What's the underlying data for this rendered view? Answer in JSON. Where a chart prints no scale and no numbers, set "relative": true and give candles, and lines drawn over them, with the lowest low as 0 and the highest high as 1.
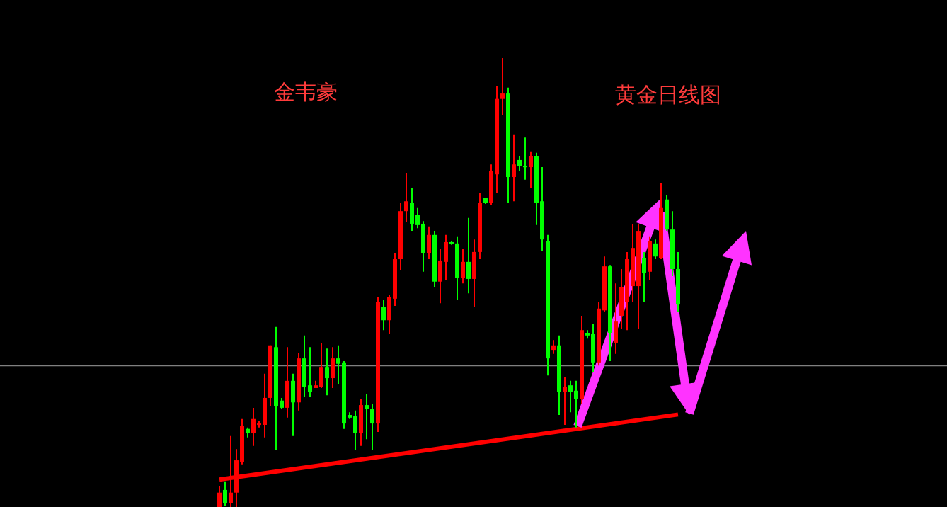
{
  "chart_data": {
    "type": "candlestick",
    "title": "黄金日线图",
    "annotations": [
      "金韦豪"
    ],
    "relative": true,
    "categories": [
      null,
      null,
      null,
      null,
      null,
      null,
      null,
      null,
      null,
      null,
      null,
      null,
      null,
      null,
      null,
      null,
      null,
      null,
      null,
      null,
      null,
      null,
      null,
      null,
      null,
      null,
      null,
      null,
      null,
      null,
      null,
      null,
      null,
      null,
      null,
      null,
      null,
      null,
      null,
      null,
      null,
      null,
      null,
      null,
      null,
      null,
      null,
      null,
      null,
      null,
      null,
      null,
      null,
      null,
      null,
      null,
      null,
      null,
      null,
      null,
      null,
      null,
      null,
      null,
      null,
      null,
      null,
      null,
      null,
      null,
      null,
      null,
      null,
      null,
      null,
      null,
      null,
      null,
      null,
      null,
      null,
      null
    ],
    "ohlc": [
      [
        0,
        0.047,
        0,
        0.032
      ],
      [
        0.038,
        0.057,
        0.003,
        0.009
      ],
      [
        0.009,
        0.158,
        0,
        0.032
      ],
      [
        0.032,
        0.129,
        0,
        0.104
      ],
      [
        0.101,
        0.196,
        0.095,
        0.18
      ],
      [
        0.174,
        0.177,
        0.155,
        0.164
      ],
      [
        0.164,
        0.221,
        0.136,
        0.196
      ],
      [
        0.183,
        0.192,
        0.177,
        0.186
      ],
      [
        0.183,
        0.297,
        0.155,
        0.243
      ],
      [
        0.243,
        0.36,
        0.224,
        0.36
      ],
      [
        0.356,
        0.401,
        0.126,
        0.224
      ],
      [
        0.237,
        0.243,
        0.218,
        0.221
      ],
      [
        0.221,
        0.356,
        0.199,
        0.281
      ],
      [
        0.281,
        0.297,
        0.158,
        0.233
      ],
      [
        0.233,
        0.344,
        0.215,
        0.331
      ],
      [
        0.331,
        0.382,
        0.246,
        0.268
      ],
      [
        0.271,
        0.356,
        0.246,
        0.256
      ],
      [
        0.265,
        0.281,
        0.265,
        0.271
      ],
      [
        0.268,
        0.366,
        0.265,
        0.312
      ],
      [
        0.312,
        0.353,
        0.249,
        0.287
      ],
      [
        0.287,
        0.356,
        0.265,
        0.331
      ],
      [
        0.331,
        0.36,
        0.274,
        0.319
      ],
      [
        0.322,
        0.325,
        0.174,
        0.186
      ],
      [
        0.205,
        0.211,
        0.196,
        0.199
      ],
      [
        0.202,
        0.215,
        0.126,
        0.164
      ],
      [
        0.164,
        0.24,
        0.136,
        0.227
      ],
      [
        0.227,
        0.252,
        0.151,
        0.218
      ],
      [
        0.218,
        0.23,
        0.126,
        0.186
      ],
      [
        0.186,
        0.467,
        0.167,
        0.457
      ],
      [
        0.445,
        0.461,
        0.394,
        0.416
      ],
      [
        0.416,
        0.473,
        0.385,
        0.467
      ],
      [
        0.464,
        0.565,
        0.448,
        0.552
      ],
      [
        0.552,
        0.678,
        0.527,
        0.659
      ],
      [
        0.659,
        0.744,
        0.634,
        0.681
      ],
      [
        0.678,
        0.71,
        0.615,
        0.631
      ],
      [
        0.65,
        0.666,
        0.621,
        0.628
      ],
      [
        0.631,
        0.637,
        0.524,
        0.565
      ],
      [
        0.565,
        0.625,
        0.552,
        0.606
      ],
      [
        0.606,
        0.615,
        0.489,
        0.502
      ],
      [
        0.502,
        0.574,
        0.454,
        0.549
      ],
      [
        0.546,
        0.606,
        0.505,
        0.59
      ],
      [
        0.59,
        0.593,
        0.584,
        0.587
      ],
      [
        0.587,
        0.603,
        0.461,
        0.511
      ],
      [
        0.511,
        0.574,
        0.498,
        0.546
      ],
      [
        0.546,
        0.644,
        0.476,
        0.508
      ],
      [
        0.508,
        0.596,
        0.445,
        0.568
      ],
      [
        0.568,
        0.7,
        0.552,
        0.678
      ],
      [
        0.688,
        0.688,
        0.675,
        0.678
      ],
      [
        0.678,
        0.763,
        0.672,
        0.748
      ],
      [
        0.741,
        0.937,
        0.7,
        0.909
      ],
      [
        0.909,
        1,
        0.874,
        0.921
      ],
      [
        0.921,
        0.934,
        0.678,
        0.735
      ],
      [
        0.735,
        0.83,
        0.681,
        0.763
      ],
      [
        0.773,
        0.782,
        0.748,
        0.76
      ],
      [
        0.76,
        0.823,
        0.729,
        0.76
      ],
      [
        0.757,
        0.792,
        0.71,
        0.782
      ],
      [
        0.782,
        0.789,
        0.628,
        0.678
      ],
      [
        0.681,
        0.757,
        0.571,
        0.596
      ],
      [
        0.593,
        0.606,
        0.293,
        0.331
      ],
      [
        0.35,
        0.372,
        0.341,
        0.36
      ],
      [
        0.36,
        0.382,
        0.205,
        0.256
      ],
      [
        0.256,
        0.29,
        0.183,
        0.268
      ],
      [
        0.271,
        0.281,
        0.211,
        0.256
      ],
      [
        0.259,
        0.281,
        0.177,
        0.24
      ],
      [
        0.24,
        0.426,
        0.23,
        0.394
      ],
      [
        0.388,
        0.394,
        0.375,
        0.382
      ],
      [
        0.385,
        0.407,
        0.3,
        0.322
      ],
      [
        0.322,
        0.457,
        0.315,
        0.442
      ],
      [
        0.438,
        0.558,
        0.435,
        0.536
      ],
      [
        0.536,
        0.539,
        0.325,
        0.388
      ],
      [
        0.366,
        0.498,
        0.341,
        0.413
      ],
      [
        0.426,
        0.53,
        0.397,
        0.489
      ],
      [
        0.457,
        0.568,
        0.394,
        0.552
      ],
      [
        0.492,
        0.631,
        0.457,
        0.577
      ],
      [
        0.492,
        0.631,
        0.397,
        0.615
      ],
      [
        0.555,
        0.568,
        0.457,
        0.521
      ],
      [
        0.524,
        0.603,
        0.505,
        0.593
      ],
      [
        0.587,
        0.596,
        0.552,
        0.558
      ],
      [
        0.555,
        0.722,
        0.552,
        0.666
      ],
      [
        0.685,
        0.694,
        0.615,
        0.618
      ],
      [
        0.618,
        0.659,
        0.514,
        0.53
      ],
      [
        0.53,
        0.568,
        0.435,
        0.451
      ]
    ],
    "colors": [
      "#ff0000",
      "#00ff00",
      "#ff0000",
      "#ff0000",
      "#ff0000",
      "#00ff00",
      "#ff0000",
      "#ff0000",
      "#ff0000",
      "#ff0000",
      "#00ff00",
      "#00ff00",
      "#ff0000",
      "#00ff00",
      "#ff0000",
      "#00ff00",
      "#00ff00",
      "#ff0000",
      "#ff0000",
      "#00ff00",
      "#ff0000",
      "#00ff00",
      "#00ff00",
      "#00ff00",
      "#00ff00",
      "#ff0000",
      "#00ff00",
      "#00ff00",
      "#ff0000",
      "#00ff00",
      "#ff0000",
      "#ff0000",
      "#ff0000",
      "#ff0000",
      "#00ff00",
      "#00ff00",
      "#00ff00",
      "#ff0000",
      "#00ff00",
      "#ff0000",
      "#ff0000",
      "#00ff00",
      "#00ff00",
      "#ff0000",
      "#00ff00",
      "#ff0000",
      "#ff0000",
      "#00ff00",
      "#ff0000",
      "#ff0000",
      "#ff0000",
      "#00ff00",
      "#ff0000",
      "#00ff00",
      "#00ff00",
      "#ff0000",
      "#00ff00",
      "#00ff00",
      "#00ff00",
      "#ff0000",
      "#00ff00",
      "#ff0000",
      "#00ff00",
      "#00ff00",
      "#ff0000",
      "#00ff00",
      "#00ff00",
      "#ff0000",
      "#ff0000",
      "#00ff00",
      "#ff0000",
      "#ff0000",
      "#ff0000",
      "#ff0000",
      "#ff0000",
      "#00ff00",
      "#ff0000",
      "#00ff00",
      "#ff0000",
      "#00ff00",
      "#00ff00",
      "#00ff00"
    ],
    "series": [
      {
        "type": "line",
        "values": [
          0.061,
          null,
          null,
          null,
          null,
          null,
          null,
          null,
          null,
          null,
          null,
          null,
          null,
          null,
          null,
          null,
          null,
          null,
          null,
          null,
          null,
          null,
          null,
          null,
          null,
          null,
          null,
          null,
          null,
          null,
          null,
          null,
          null,
          null,
          null,
          null,
          null,
          null,
          null,
          null,
          null,
          null,
          null,
          null,
          null,
          null,
          null,
          null,
          null,
          null,
          null,
          null,
          null,
          null,
          null,
          null,
          null,
          null,
          null,
          null,
          null,
          null,
          null,
          null,
          null,
          null,
          null,
          null,
          null,
          null,
          null,
          null,
          null,
          null,
          null,
          null,
          null,
          null,
          null,
          null,
          null,
          0.206
        ],
        "color": "#ff0000"
      }
    ],
    "ref_lines": [
      {
        "axis": "y",
        "value": 0.315,
        "color": "#808080"
      }
    ]
  }
}
